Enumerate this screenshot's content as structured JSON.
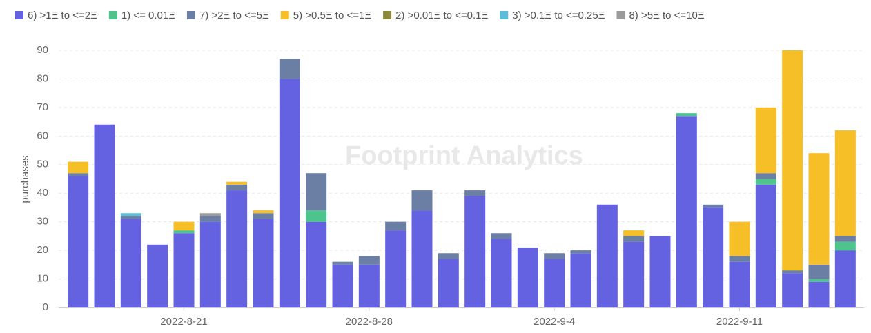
{
  "chart_data": {
    "type": "stacked-bar",
    "watermark": "Footprint Analytics",
    "y_label": "purchases",
    "categories": [
      null,
      null,
      null,
      null,
      "2022-8-21",
      null,
      null,
      null,
      null,
      null,
      null,
      "2022-8-28",
      null,
      null,
      null,
      null,
      null,
      null,
      "2022-9-4",
      null,
      null,
      null,
      null,
      null,
      null,
      "2022-9-11",
      null,
      null,
      null,
      null
    ],
    "series": [
      {
        "name": "6) >1Ξ to <=2Ξ",
        "color": "#6562e1",
        "values": [
          46,
          64,
          31,
          22,
          26,
          30,
          41,
          31,
          80,
          30,
          15,
          15,
          27,
          34,
          17,
          39,
          24,
          21,
          17,
          19,
          36,
          23,
          25,
          67,
          35,
          16,
          43,
          12,
          9,
          20
        ]
      },
      {
        "name": "1) <= 0.01Ξ",
        "color": "#4cc48b",
        "values": [
          0,
          0,
          0,
          0,
          1,
          0,
          0,
          0,
          0,
          4,
          0,
          0,
          0,
          0,
          0,
          0,
          0,
          0,
          0,
          0,
          0,
          0,
          0,
          1,
          0,
          0,
          2,
          0,
          1,
          3
        ]
      },
      {
        "name": "7) >2Ξ to <=5Ξ",
        "color": "#6b7ea4",
        "values": [
          1,
          0,
          1,
          0,
          0,
          2,
          2,
          2,
          7,
          13,
          1,
          3,
          3,
          7,
          2,
          2,
          2,
          0,
          2,
          1,
          0,
          2,
          0,
          0,
          1,
          2,
          2,
          1,
          5,
          2
        ]
      },
      {
        "name": "5) >0.5Ξ to <=1Ξ",
        "color": "#f6be27",
        "values": [
          4,
          0,
          0,
          0,
          3,
          0,
          1,
          1,
          0,
          0,
          0,
          0,
          0,
          0,
          0,
          0,
          0,
          0,
          0,
          0,
          0,
          2,
          0,
          0,
          0,
          12,
          23,
          77,
          39,
          37
        ]
      },
      {
        "name": "2) >0.01Ξ to <=0.1Ξ",
        "color": "#8b8b3b",
        "values": [
          0,
          0,
          0,
          0,
          0,
          0,
          0,
          0,
          0,
          0,
          0,
          0,
          0,
          0,
          0,
          0,
          0,
          0,
          0,
          0,
          0,
          0,
          0,
          0,
          0,
          0,
          0,
          0,
          0,
          0
        ]
      },
      {
        "name": "3) >0.1Ξ to <=0.25Ξ",
        "color": "#5bbdd6",
        "values": [
          0,
          0,
          1,
          0,
          0,
          0,
          0,
          0,
          0,
          0,
          0,
          0,
          0,
          0,
          0,
          0,
          0,
          0,
          0,
          0,
          0,
          0,
          0,
          0,
          0,
          0,
          0,
          0,
          0,
          0
        ]
      },
      {
        "name": "8) >5Ξ to <=10Ξ",
        "color": "#9b9b9b",
        "values": [
          0,
          0,
          0,
          0,
          0,
          1,
          0,
          0,
          0,
          0,
          0,
          0,
          0,
          0,
          0,
          0,
          0,
          0,
          0,
          0,
          0,
          0,
          0,
          0,
          0,
          0,
          0,
          0,
          0,
          0
        ]
      }
    ],
    "ylim": [
      0,
      90
    ],
    "yticks": [
      0,
      10,
      20,
      30,
      40,
      50,
      60,
      70,
      80,
      90
    ],
    "grid": true
  }
}
